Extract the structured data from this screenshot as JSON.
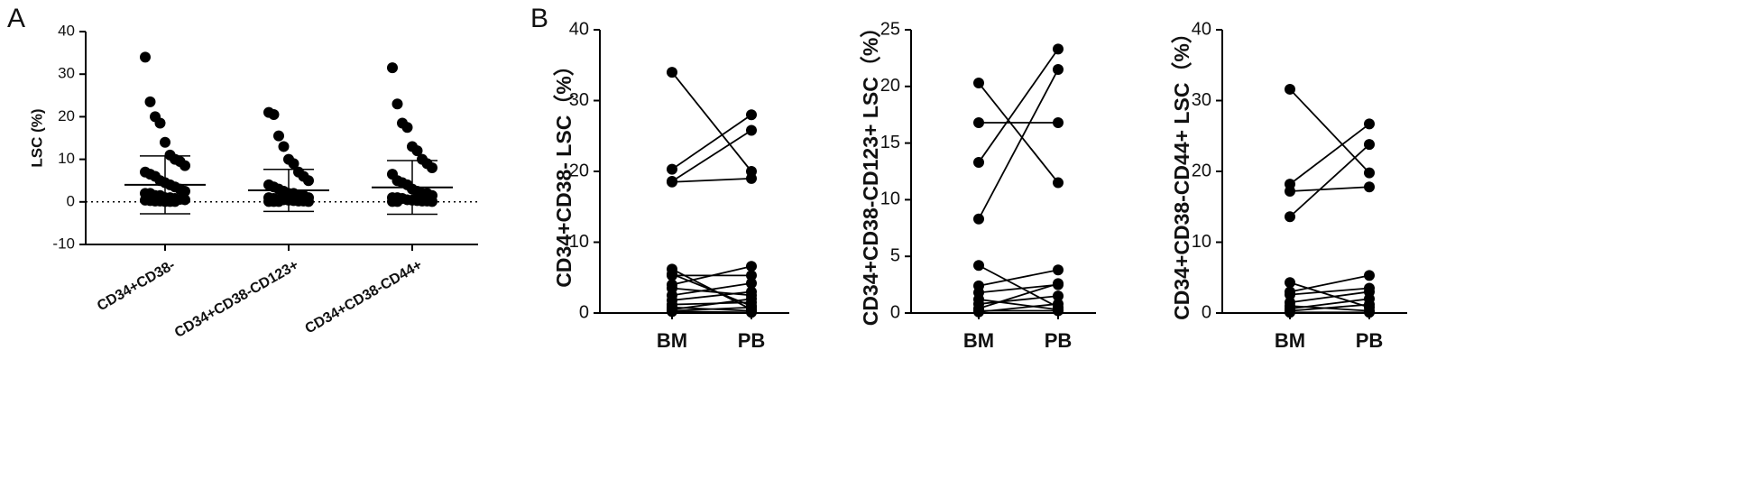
{
  "chart_data": [
    {
      "type": "dotplot",
      "panel_label": "A",
      "y_label": "LSC (%)",
      "color": "#000000",
      "categories": [
        "CD34+CD38-",
        "CD34+CD38-CD123+",
        "CD34+CD38-CD44+"
      ],
      "points": [
        [
          34,
          23.5,
          20,
          18.5,
          14,
          11,
          10,
          9.5,
          8.5,
          7,
          6.5,
          6,
          5,
          4.5,
          4,
          3.5,
          3,
          2.5,
          2,
          2,
          1.5,
          1.5,
          1,
          1,
          0.8,
          0.6,
          0.5,
          0.4,
          0.3,
          0.2,
          0.2,
          0.1,
          0.1,
          0.1
        ],
        [
          21,
          20.5,
          15.5,
          13,
          10,
          9,
          7,
          6,
          5,
          4,
          3.5,
          3,
          2.5,
          2,
          2,
          1.5,
          1.5,
          1,
          1,
          0.8,
          0.6,
          0.5,
          0.4,
          0.3,
          0.2,
          0.2,
          0.1,
          0.1,
          0.1,
          0.1
        ],
        [
          31.5,
          23,
          18.5,
          17.5,
          13,
          12,
          10,
          9,
          8,
          6.5,
          5,
          4.5,
          4,
          3,
          2.5,
          2,
          2,
          1.5,
          1,
          1,
          0.8,
          0.5,
          0.4,
          0.3,
          0.2,
          0.2,
          0.1,
          0.1,
          0.1
        ]
      ],
      "means": [
        4.0,
        2.7,
        3.4
      ],
      "sd": [
        6.8,
        4.95,
        6.3
      ],
      "ylim": [
        -10,
        40
      ],
      "yticks": [
        -10,
        0,
        10,
        20,
        30,
        40
      ]
    },
    {
      "type": "paired",
      "panel_label": "B",
      "y_label": "CD34+CD38- LSC（%）",
      "color": "#000000",
      "categories": [
        "BM",
        "PB"
      ],
      "values": [
        [
          34,
          20
        ],
        [
          20.3,
          28
        ],
        [
          18.6,
          25.8
        ],
        [
          18.5,
          19
        ],
        [
          6.2,
          0.5
        ],
        [
          5.3,
          5.3
        ],
        [
          5.5,
          1.0
        ],
        [
          4.0,
          6.6
        ],
        [
          3.5,
          2.5
        ],
        [
          2.5,
          4.2
        ],
        [
          1.8,
          3.0
        ],
        [
          1.2,
          1.5
        ],
        [
          0.8,
          0.3
        ],
        [
          0.5,
          2.0
        ],
        [
          0.3,
          0.8
        ],
        [
          0.2,
          0.1
        ]
      ],
      "ylim": [
        0,
        40
      ],
      "yticks": [
        0,
        10,
        20,
        30,
        40
      ]
    },
    {
      "type": "paired",
      "y_label": "CD34+CD38-CD123+ LSC（%）",
      "color": "#000000",
      "categories": [
        "BM",
        "PB"
      ],
      "values": [
        [
          20.3,
          11.5
        ],
        [
          16.8,
          16.8
        ],
        [
          13.3,
          23.3
        ],
        [
          8.3,
          21.5
        ],
        [
          4.2,
          0.5
        ],
        [
          2.4,
          3.8
        ],
        [
          1.8,
          2.5
        ],
        [
          1.2,
          0.3
        ],
        [
          0.8,
          1.5
        ],
        [
          0.4,
          2.6
        ],
        [
          0.2,
          0.2
        ],
        [
          0.1,
          0.8
        ]
      ],
      "ylim": [
        0,
        25
      ],
      "yticks": [
        0,
        5,
        10,
        15,
        20,
        25
      ]
    },
    {
      "type": "paired",
      "y_label": "CD34+CD38-CD44+ LSC（%）",
      "color": "#000000",
      "categories": [
        "BM",
        "PB"
      ],
      "values": [
        [
          31.6,
          19.8
        ],
        [
          18.2,
          26.7
        ],
        [
          17.2,
          17.8
        ],
        [
          13.6,
          23.8
        ],
        [
          4.3,
          0.8
        ],
        [
          3.0,
          5.3
        ],
        [
          2.6,
          3.5
        ],
        [
          1.5,
          3.0
        ],
        [
          1.0,
          0.3
        ],
        [
          0.6,
          2.0
        ],
        [
          0.3,
          1.2
        ],
        [
          0.1,
          0.1
        ]
      ],
      "ylim": [
        0,
        40
      ],
      "yticks": [
        0,
        10,
        20,
        30,
        40
      ]
    }
  ]
}
